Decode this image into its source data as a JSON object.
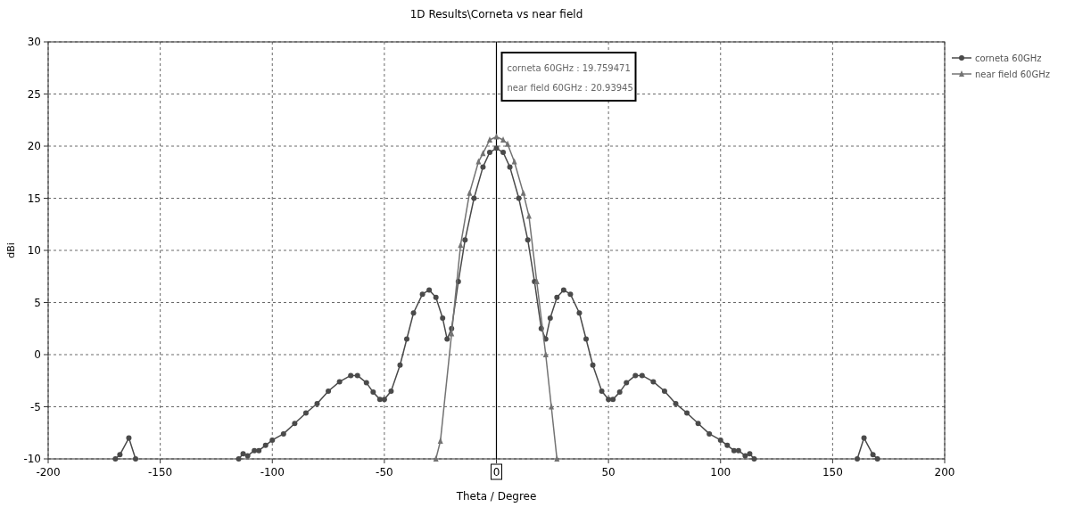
{
  "chart_data": {
    "type": "line",
    "title": "1D Results\\Corneta vs near field",
    "xlabel": "Theta / Degree",
    "ylabel": "dBi",
    "xlim": [
      -200,
      200
    ],
    "xticks": [
      -200,
      -150,
      -100,
      -50,
      0,
      50,
      100,
      150,
      200
    ],
    "ylim": [
      -10,
      30
    ],
    "yticks": [
      -10,
      -5,
      0,
      5,
      10,
      15,
      20,
      25,
      30
    ],
    "grid": true,
    "legend": "right",
    "line_style": "solid",
    "ref_lines": [
      {
        "axis": "x",
        "value": 0,
        "color": "#000000"
      }
    ],
    "annotations": [
      "corneta 60GHz : 19.759471",
      "near field 60GHz : 20.93945"
    ],
    "series": [
      {
        "name": "corneta 60GHz",
        "color": "#4a4a4a",
        "marker": "circle",
        "x": [
          -170,
          -168,
          -164,
          -161,
          -140,
          -115,
          -113,
          -111,
          -108,
          -106,
          -103,
          -100,
          -95,
          -90,
          -85,
          -80,
          -75,
          -70,
          -65,
          -62,
          -58,
          -55,
          -52,
          -50,
          -47,
          -43,
          -40,
          -37,
          -33,
          -30,
          -27,
          -24,
          -22,
          -20,
          -17,
          -14,
          -10,
          -6,
          -3,
          0,
          3,
          6,
          10,
          14,
          17,
          20,
          22,
          24,
          27,
          30,
          33,
          37,
          40,
          43,
          47,
          50,
          52,
          55,
          58,
          62,
          65,
          70,
          75,
          80,
          85,
          90,
          95,
          100,
          103,
          106,
          108,
          111,
          113,
          115,
          140,
          161,
          164,
          168,
          170
        ],
        "values": [
          -10,
          -9.6,
          -8,
          -10,
          null,
          -10,
          -9.5,
          -9.7,
          -9.2,
          -9.2,
          -8.7,
          -8.2,
          -7.6,
          -6.6,
          -5.6,
          -4.7,
          -3.5,
          -2.6,
          -2,
          -2,
          -2.7,
          -3.6,
          -4.3,
          -4.3,
          -3.5,
          -1,
          1.5,
          4,
          5.8,
          6.2,
          5.5,
          3.5,
          1.5,
          2.5,
          7,
          11,
          15,
          18,
          19.4,
          19.8,
          19.4,
          18,
          15,
          11,
          7,
          2.5,
          1.5,
          3.5,
          5.5,
          6.2,
          5.8,
          4,
          1.5,
          -1,
          -3.5,
          -4.3,
          -4.3,
          -3.6,
          -2.7,
          -2,
          -2,
          -2.6,
          -3.5,
          -4.7,
          -5.6,
          -6.6,
          -7.6,
          -8.2,
          -8.7,
          -9.2,
          -9.2,
          -9.7,
          -9.5,
          -10,
          null,
          -10,
          -8,
          -9.6,
          -10
        ]
      },
      {
        "name": "near field 60GHz",
        "color": "#737373",
        "marker": "triangle",
        "x": [
          -27,
          -25,
          -20,
          -16,
          -12,
          -8,
          -6,
          -3,
          0,
          3,
          5,
          8,
          12,
          14.5,
          18,
          22,
          24.5,
          27
        ],
        "values": [
          -10,
          -8.3,
          2,
          10.5,
          15.5,
          18.5,
          19.3,
          20.6,
          20.9,
          20.6,
          20.2,
          18.5,
          15.5,
          13.3,
          7,
          0,
          -5,
          -10
        ]
      }
    ]
  }
}
